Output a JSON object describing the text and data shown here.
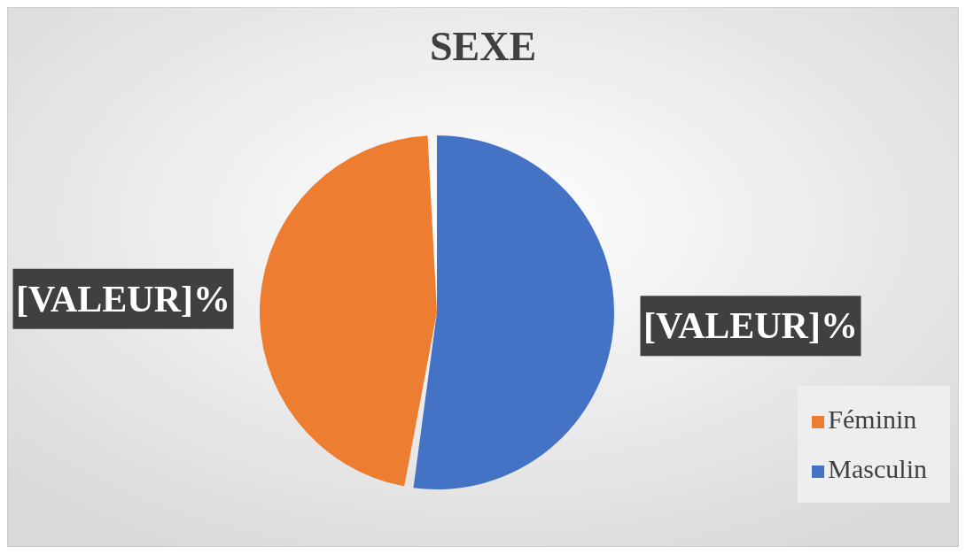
{
  "chart_data": {
    "type": "pie",
    "title": "SEXE",
    "categories": [
      "Masculin",
      "Féminin"
    ],
    "values": [
      53,
      47
    ],
    "colors": [
      "#4472c4",
      "#ed7d31"
    ],
    "value_labels": [
      "[VALEUR]%",
      "[VALEUR]%"
    ],
    "legend": "bottom right"
  }
}
